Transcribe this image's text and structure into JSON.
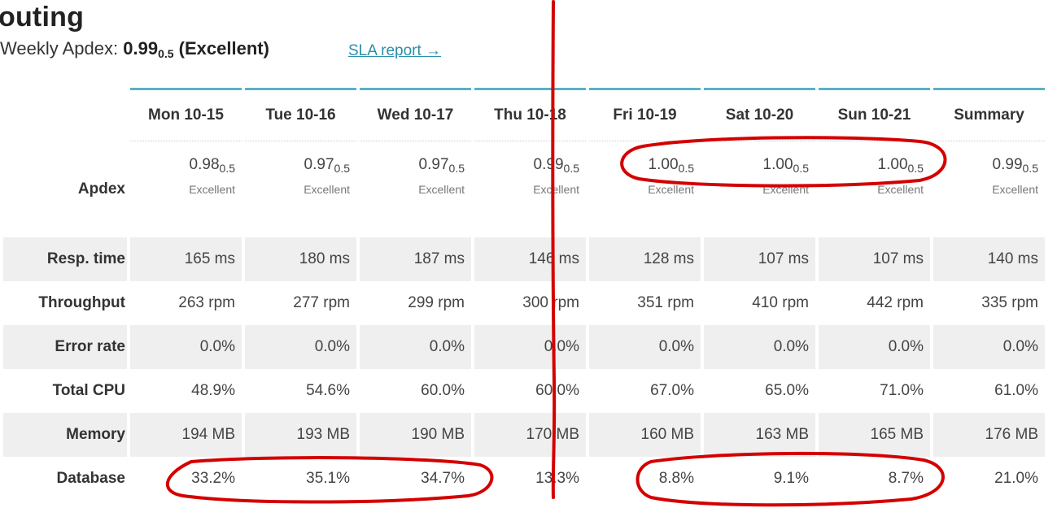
{
  "page": {
    "title": "outing",
    "weekly_label": "Weekly Apdex:",
    "weekly_value": "0.99",
    "weekly_threshold": "0.5",
    "weekly_rating": "(Excellent)",
    "sla_link": "SLA report →"
  },
  "table": {
    "columns": [
      "Mon 10-15",
      "Tue 10-16",
      "Wed 10-17",
      "Thu 10-18",
      "Fri 10-19",
      "Sat 10-20",
      "Sun 10-21",
      "Summary"
    ],
    "apdex": {
      "label": "Apdex",
      "threshold": "0.5",
      "values": [
        "0.98",
        "0.97",
        "0.97",
        "0.99",
        "1.00",
        "1.00",
        "1.00",
        "0.99"
      ],
      "ratings": [
        "Excellent",
        "Excellent",
        "Excellent",
        "Excellent",
        "Excellent",
        "Excellent",
        "Excellent",
        "Excellent"
      ]
    },
    "rows": [
      {
        "label": "Resp. time",
        "values": [
          "165 ms",
          "180 ms",
          "187 ms",
          "146 ms",
          "128 ms",
          "107 ms",
          "107 ms",
          "140 ms"
        ]
      },
      {
        "label": "Throughput",
        "values": [
          "263 rpm",
          "277 rpm",
          "299 rpm",
          "300 rpm",
          "351 rpm",
          "410 rpm",
          "442 rpm",
          "335 rpm"
        ]
      },
      {
        "label": "Error rate",
        "values": [
          "0.0%",
          "0.0%",
          "0.0%",
          "0.0%",
          "0.0%",
          "0.0%",
          "0.0%",
          "0.0%"
        ]
      },
      {
        "label": "Total CPU",
        "values": [
          "48.9%",
          "54.6%",
          "60.0%",
          "60.0%",
          "67.0%",
          "65.0%",
          "71.0%",
          "61.0%"
        ]
      },
      {
        "label": "Memory",
        "values": [
          "194 MB",
          "193 MB",
          "190 MB",
          "170 MB",
          "160 MB",
          "163 MB",
          "165 MB",
          "176 MB"
        ]
      },
      {
        "label": "Database",
        "values": [
          "33.2%",
          "35.1%",
          "34.7%",
          "13.3%",
          "8.8%",
          "9.1%",
          "8.7%",
          "21.0%"
        ]
      }
    ]
  },
  "annotations": {
    "color": "#d40000"
  },
  "colors": {
    "accent": "#5bb1c4",
    "link": "#2b8fa6",
    "row_shade": "#efefef"
  }
}
